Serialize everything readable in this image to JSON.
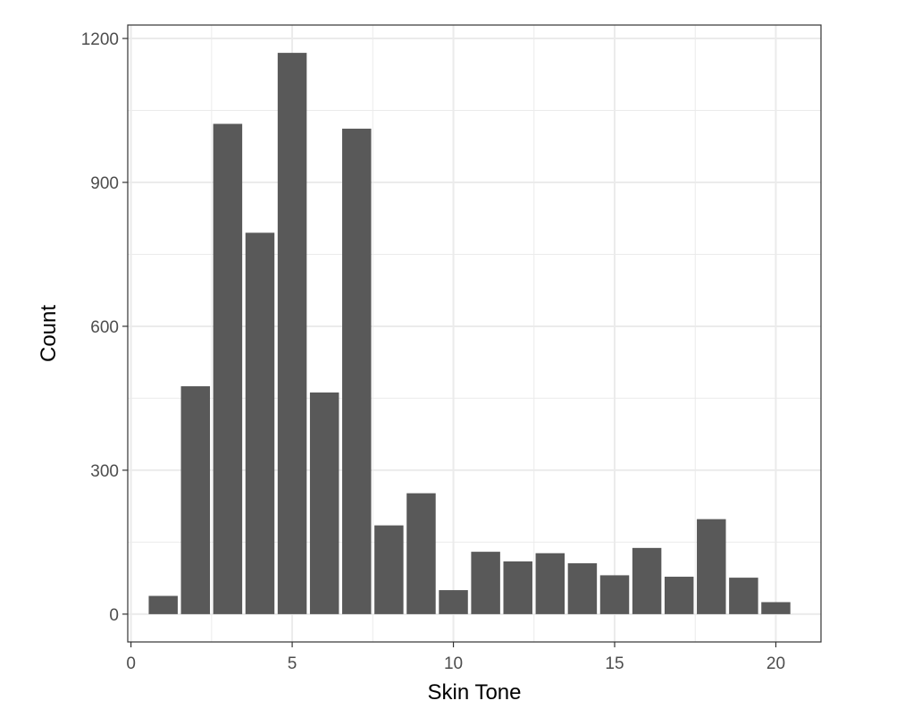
{
  "chart_data": {
    "type": "bar",
    "title": "",
    "xlabel": "Skin Tone",
    "ylabel": "Count",
    "x": [
      1,
      2,
      3,
      4,
      5,
      6,
      7,
      8,
      9,
      10,
      11,
      12,
      13,
      14,
      15,
      16,
      17,
      18,
      19,
      20
    ],
    "values": [
      38,
      475,
      1022,
      795,
      1170,
      462,
      1012,
      185,
      252,
      50,
      130,
      110,
      127,
      106,
      81,
      138,
      78,
      198,
      76,
      25
    ],
    "xlim": [
      -0.1,
      21.4
    ],
    "ylim": [
      -58,
      1228
    ],
    "xticks": [
      0,
      5,
      10,
      15,
      20
    ],
    "xtick_labels": [
      "0",
      "5",
      "10",
      "15",
      "20"
    ],
    "yticks": [
      0,
      300,
      600,
      900,
      1200
    ],
    "ytick_labels": [
      "0",
      "300",
      "600",
      "900",
      "1200"
    ],
    "grid": true,
    "legend": "none",
    "colors": {
      "bar": "#595959",
      "grid": "#ebebeb",
      "panel_border": "#333333",
      "background": "#ffffff"
    }
  }
}
